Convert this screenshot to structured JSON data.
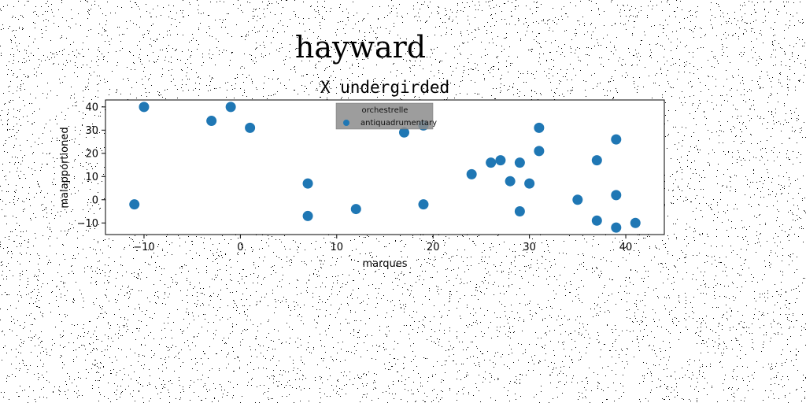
{
  "figure": {
    "suptitle": "hayward"
  },
  "chart_data": {
    "type": "scatter",
    "title": "X undergirded",
    "xlabel": "marques",
    "ylabel": "malapportioned",
    "xlim": [
      -14,
      44
    ],
    "ylim": [
      -15,
      43
    ],
    "xticks": [
      -10,
      0,
      10,
      20,
      30,
      40
    ],
    "yticks": [
      -10,
      0,
      10,
      20,
      30,
      40
    ],
    "grid": false,
    "legend": {
      "title": "orchestrelle",
      "placement": "top-center",
      "entries": [
        "antiquadrumentary"
      ]
    },
    "series": [
      {
        "name": "antiquadrumentary",
        "color": "#1f77b4",
        "x": [
          -10,
          -1,
          -3,
          1,
          -11,
          7,
          7,
          12,
          17,
          19,
          19,
          24,
          26,
          27,
          28,
          29,
          29,
          30,
          31,
          31,
          35,
          37,
          37,
          39,
          39,
          39,
          41
        ],
        "y": [
          40,
          40,
          34,
          31,
          -2,
          7,
          -7,
          -4,
          29,
          32,
          -2,
          11,
          16,
          17,
          8,
          16,
          -5,
          7,
          31,
          21,
          0,
          17,
          -9,
          26,
          2,
          -12,
          -10
        ]
      }
    ]
  }
}
